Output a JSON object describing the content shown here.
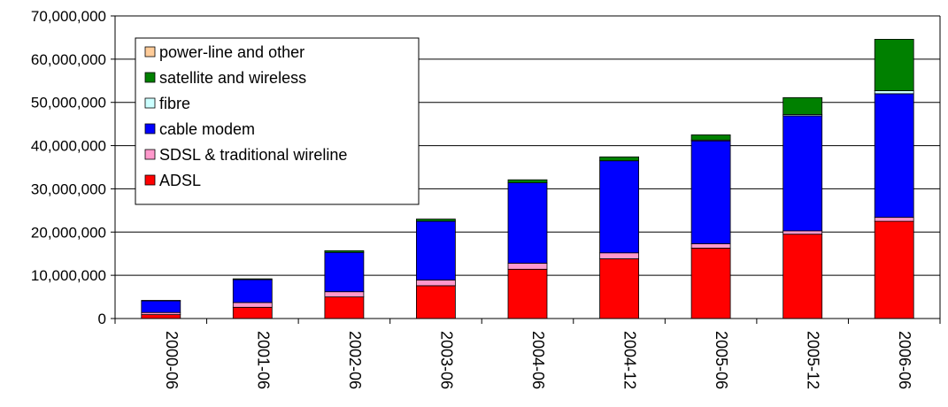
{
  "chart_data": {
    "type": "bar",
    "stacked": true,
    "categories": [
      "2000-06",
      "2001-06",
      "2002-06",
      "2003-06",
      "2004-06",
      "2004-12",
      "2005-06",
      "2005-12",
      "2006-06"
    ],
    "ylim": [
      0,
      70000000
    ],
    "yticks": [
      0,
      10000000,
      20000000,
      30000000,
      40000000,
      50000000,
      60000000,
      70000000
    ],
    "ytick_labels": [
      "0",
      "10,000,000",
      "20,000,000",
      "30,000,000",
      "40,000,000",
      "50,000,000",
      "60,000,000",
      "70,000,000"
    ],
    "grid": true,
    "legend_position": "top-left",
    "title": "",
    "xlabel": "",
    "ylabel": "",
    "series": [
      {
        "name": "ADSL",
        "color": "#ff0000",
        "values": [
          900000,
          2600000,
          5000000,
          7600000,
          11400000,
          13800000,
          16300000,
          19500000,
          22500000
        ]
      },
      {
        "name": "SDSL & traditional wireline",
        "color": "#ff99cc",
        "values": [
          500000,
          1100000,
          1200000,
          1300000,
          1400000,
          1400000,
          1000000,
          800000,
          900000
        ]
      },
      {
        "name": "cable modem",
        "color": "#0000ff",
        "values": [
          2700000,
          5300000,
          9100000,
          13600000,
          18600000,
          21300000,
          23800000,
          26600000,
          28600000
        ]
      },
      {
        "name": "fibre",
        "color": "#ccffff",
        "values": [
          0,
          0,
          0,
          0,
          0,
          0,
          200000,
          300000,
          700000
        ]
      },
      {
        "name": "satellite and wireless",
        "color": "#008000",
        "values": [
          100000,
          200000,
          400000,
          500000,
          700000,
          900000,
          1200000,
          3900000,
          11900000
        ]
      },
      {
        "name": "power-line and other",
        "color": "#ffcc99",
        "values": [
          0,
          0,
          0,
          0,
          0,
          0,
          0,
          0,
          0
        ]
      }
    ]
  }
}
